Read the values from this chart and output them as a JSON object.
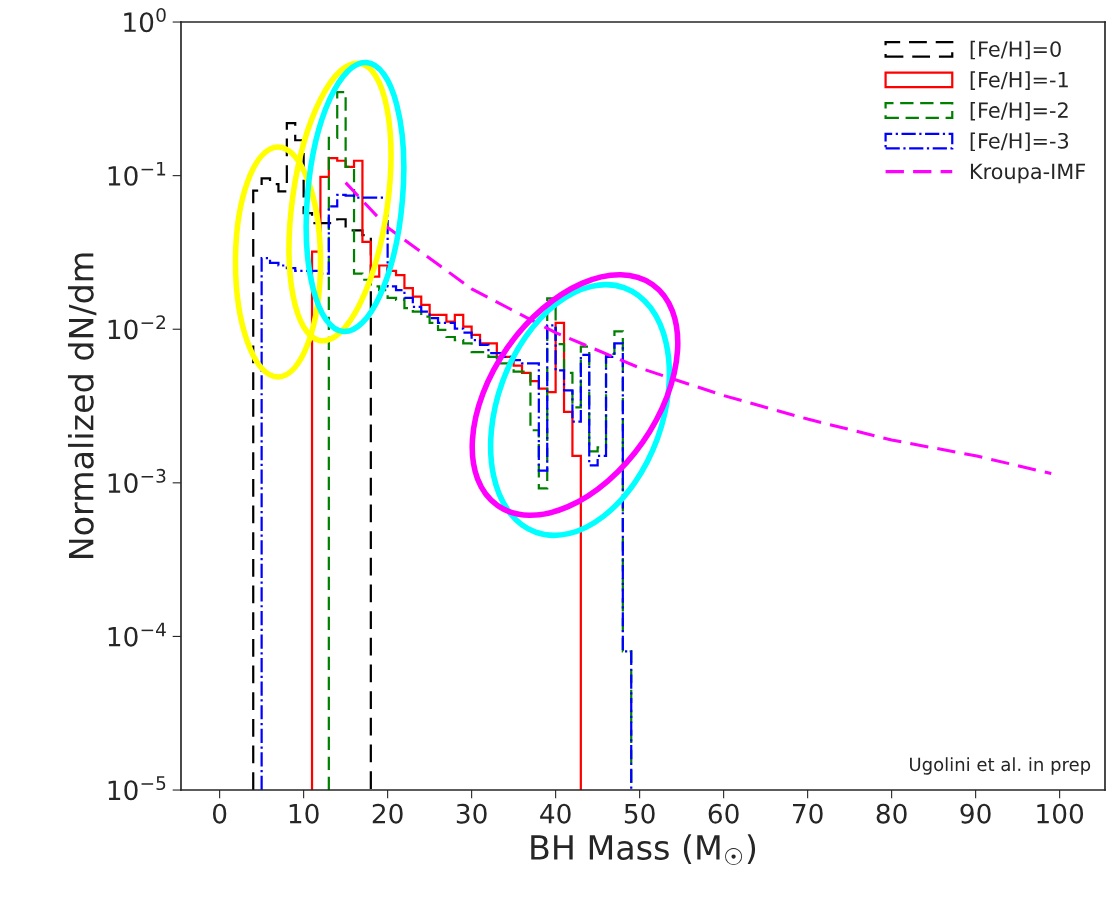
{
  "chart_data": {
    "type": "histogram",
    "xlabel": "BH Mass (M$_{☉}$)",
    "ylabel": "Normalized dN/dm",
    "log": "y",
    "xlim": [
      -4.6,
      105.4
    ],
    "ylim": [
      1e-05,
      1
    ],
    "xticks": [
      0,
      10,
      20,
      30,
      40,
      50,
      60,
      70,
      80,
      90,
      100
    ],
    "yticks": [
      {
        "value": 1e-05,
        "label": "10$^{−5}$"
      },
      {
        "value": 0.0001,
        "label": "10$^{−4}$"
      },
      {
        "value": 0.001,
        "label": "10$^{−3}$"
      },
      {
        "value": 0.01,
        "label": "10$^{−2}$"
      },
      {
        "value": 0.1,
        "label": "10$^{−1}$"
      },
      {
        "value": 1,
        "label": "10$^{0}$"
      }
    ],
    "grid": false,
    "legend": "top right",
    "annotations": [
      "Ugolini et al. in prep"
    ],
    "series": [
      {
        "name": "[Fe/H]=0",
        "color": "#000000",
        "line_style": "dashed",
        "bins": [
          4,
          5,
          6,
          7,
          8,
          9,
          10,
          11,
          12,
          13,
          14,
          15,
          16,
          17,
          18
        ],
        "values": [
          0.08,
          0.096,
          0.088,
          0.079,
          0.22,
          0.17,
          0.057,
          0.049,
          0.049,
          0.049,
          0.052,
          0.044,
          0.044,
          0.041
        ]
      },
      {
        "name": "[Fe/H]=-1",
        "color": "#ff0000",
        "line_style": "solid",
        "bins": [
          11,
          12,
          13,
          14,
          15,
          16,
          17,
          18,
          19,
          20,
          21,
          22,
          23,
          24,
          25,
          26,
          27,
          28,
          29,
          30,
          31,
          32,
          33,
          34,
          35,
          36,
          37,
          38,
          39,
          40,
          41,
          42,
          43
        ],
        "values": [
          0.032,
          0.098,
          0.13,
          0.125,
          0.114,
          0.125,
          0.037,
          0.022,
          0.026,
          0.024,
          0.0225,
          0.0185,
          0.0163,
          0.0144,
          0.0124,
          0.0124,
          0.0112,
          0.0124,
          0.0104,
          0.0092,
          0.0081,
          0.0081,
          0.0066,
          0.0066,
          0.0058,
          0.0052,
          0.0046,
          0.0041,
          0.0039,
          0.011,
          0.0029,
          0.0015
        ]
      },
      {
        "name": "[Fe/H]=-2",
        "color": "#008000",
        "line_style": "dashed",
        "bins": [
          13,
          14,
          15,
          16,
          17,
          18,
          19,
          20,
          21,
          22,
          23,
          24,
          25,
          26,
          27,
          28,
          29,
          30,
          31,
          32,
          33,
          34,
          35,
          36,
          37,
          38,
          39,
          40,
          41,
          42,
          43,
          44,
          45,
          46,
          47,
          48,
          49
        ],
        "values": [
          0.176,
          0.35,
          0.114,
          0.023,
          0.021,
          0.019,
          0.018,
          0.016,
          0.0155,
          0.0137,
          0.013,
          0.0121,
          0.011,
          0.0099,
          0.0089,
          0.0085,
          0.0081,
          0.0071,
          0.0071,
          0.0066,
          0.006,
          0.006,
          0.0053,
          0.0053,
          0.0022,
          0.00092,
          0.0159,
          0.008,
          0.0052,
          0.0031,
          0.0077,
          0.0016,
          0.0017,
          0.0069,
          0.0097,
          8e-05
        ]
      },
      {
        "name": "[Fe/H]=-3",
        "color": "#0000ff",
        "line_style": "dashdot",
        "bins": [
          5,
          6,
          7,
          8,
          9,
          10,
          11,
          12,
          13,
          14,
          15,
          16,
          17,
          18,
          19,
          20,
          21,
          22,
          23,
          24,
          25,
          26,
          27,
          28,
          29,
          30,
          31,
          32,
          33,
          34,
          35,
          36,
          37,
          38,
          39,
          40,
          41,
          42,
          43,
          44,
          45,
          46,
          47,
          48,
          49
        ],
        "values": [
          0.029,
          0.027,
          0.026,
          0.025,
          0.024,
          0.024,
          0.024,
          0.023,
          0.063,
          0.075,
          0.074,
          0.072,
          0.072,
          0.072,
          0.072,
          0.019,
          0.018,
          0.016,
          0.014,
          0.013,
          0.0118,
          0.011,
          0.011,
          0.0101,
          0.0095,
          0.0085,
          0.0079,
          0.007,
          0.007,
          0.0066,
          0.0063,
          0.006,
          0.006,
          0.0012,
          0.0106,
          0.0054,
          0.004,
          0.0025,
          0.0068,
          0.0013,
          0.0015,
          0.0066,
          0.0081,
          8e-05
        ]
      },
      {
        "type": "line",
        "name": "Kroupa-IMF",
        "color": "#ff00ff",
        "line_style": "dashed",
        "x": [
          15,
          20,
          30,
          40,
          50,
          60,
          70,
          80,
          90,
          99
        ],
        "values": [
          0.09,
          0.046,
          0.0183,
          0.0095,
          0.0056,
          0.0037,
          0.0026,
          0.0019,
          0.0015,
          0.00115
        ]
      }
    ]
  }
}
